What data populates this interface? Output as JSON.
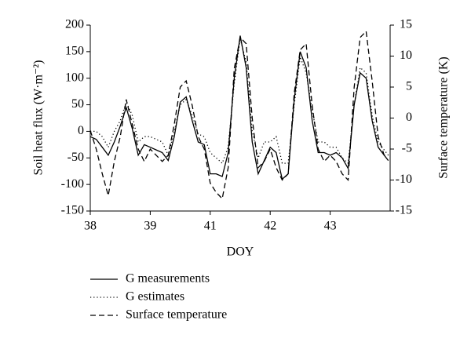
{
  "chart_data": {
    "type": "line",
    "xlabel": "DOY",
    "ylabel": "Soil heat flux (W·m⁻²)",
    "y2label": "Surface temperature (K)",
    "x": [
      38.0,
      38.1,
      38.2,
      38.3,
      38.4,
      38.5,
      38.6,
      38.7,
      38.8,
      38.9,
      39.0,
      39.2,
      39.4,
      39.6,
      39.8,
      40.0,
      40.2,
      40.4,
      40.6,
      40.8,
      41.0,
      41.1,
      41.2,
      41.3,
      41.4,
      41.5,
      41.6,
      41.7,
      41.8,
      41.9,
      42.0,
      42.1,
      42.2,
      42.3,
      42.4,
      42.5,
      42.6,
      42.7,
      42.8,
      42.9,
      43.0,
      43.1,
      43.2,
      43.3,
      43.4,
      43.5,
      43.6,
      43.7,
      43.8,
      43.9,
      43.97
    ],
    "series": [
      {
        "name": "G measurements",
        "color": "#000000",
        "linestyle": "solid",
        "axis": "y",
        "values": [
          -10,
          -15,
          -30,
          -45,
          -20,
          10,
          45,
          5,
          -45,
          -25,
          -30,
          -35,
          -40,
          -55,
          -10,
          55,
          65,
          20,
          -20,
          -25,
          -80,
          -80,
          -85,
          -40,
          100,
          180,
          120,
          -20,
          -80,
          -55,
          -30,
          -40,
          -90,
          -80,
          60,
          150,
          120,
          20,
          -40,
          -40,
          -45,
          -40,
          -50,
          -70,
          50,
          110,
          100,
          20,
          -30,
          -45,
          -55
        ]
      },
      {
        "name": "G estimates",
        "color": "#000000",
        "linestyle": "dotted",
        "axis": "y",
        "values": [
          0,
          0,
          -10,
          -30,
          0,
          20,
          55,
          30,
          -20,
          -10,
          -10,
          -15,
          -20,
          -45,
          0,
          50,
          60,
          30,
          -5,
          -10,
          -40,
          -50,
          -60,
          -30,
          90,
          175,
          130,
          0,
          -50,
          -20,
          -20,
          -10,
          -60,
          -60,
          50,
          140,
          110,
          40,
          -20,
          -20,
          -30,
          -30,
          -50,
          -60,
          50,
          120,
          110,
          30,
          -20,
          -35,
          -45
        ]
      },
      {
        "name": "Surface temperature",
        "color": "#000000",
        "linestyle": "dashed",
        "axis": "y2",
        "values": [
          -2,
          -5,
          -9,
          -12.5,
          -7,
          -3,
          3,
          -1,
          -5,
          -7,
          -5,
          -6,
          -7,
          -6,
          -1,
          5,
          6,
          2,
          -3,
          -5,
          -10.5,
          -12,
          -13,
          -8,
          8,
          13,
          12,
          0,
          -8,
          -7,
          -5,
          -8,
          -10,
          -9,
          4,
          11,
          12,
          2,
          -5,
          -7,
          -6,
          -7,
          -9,
          -10,
          5,
          13,
          14,
          6,
          -3,
          -6,
          -6
        ]
      }
    ],
    "xlim": [
      38,
      44
    ],
    "xticks": [
      38,
      39,
      41,
      42,
      43
    ],
    "ylim": [
      -150,
      200
    ],
    "yticks": [
      -150,
      -100,
      -50,
      0,
      50,
      100,
      150,
      200
    ],
    "y2lim": [
      -15,
      15
    ],
    "y2ticks": [
      -15,
      -10,
      -5,
      0,
      5,
      10,
      15
    ]
  }
}
